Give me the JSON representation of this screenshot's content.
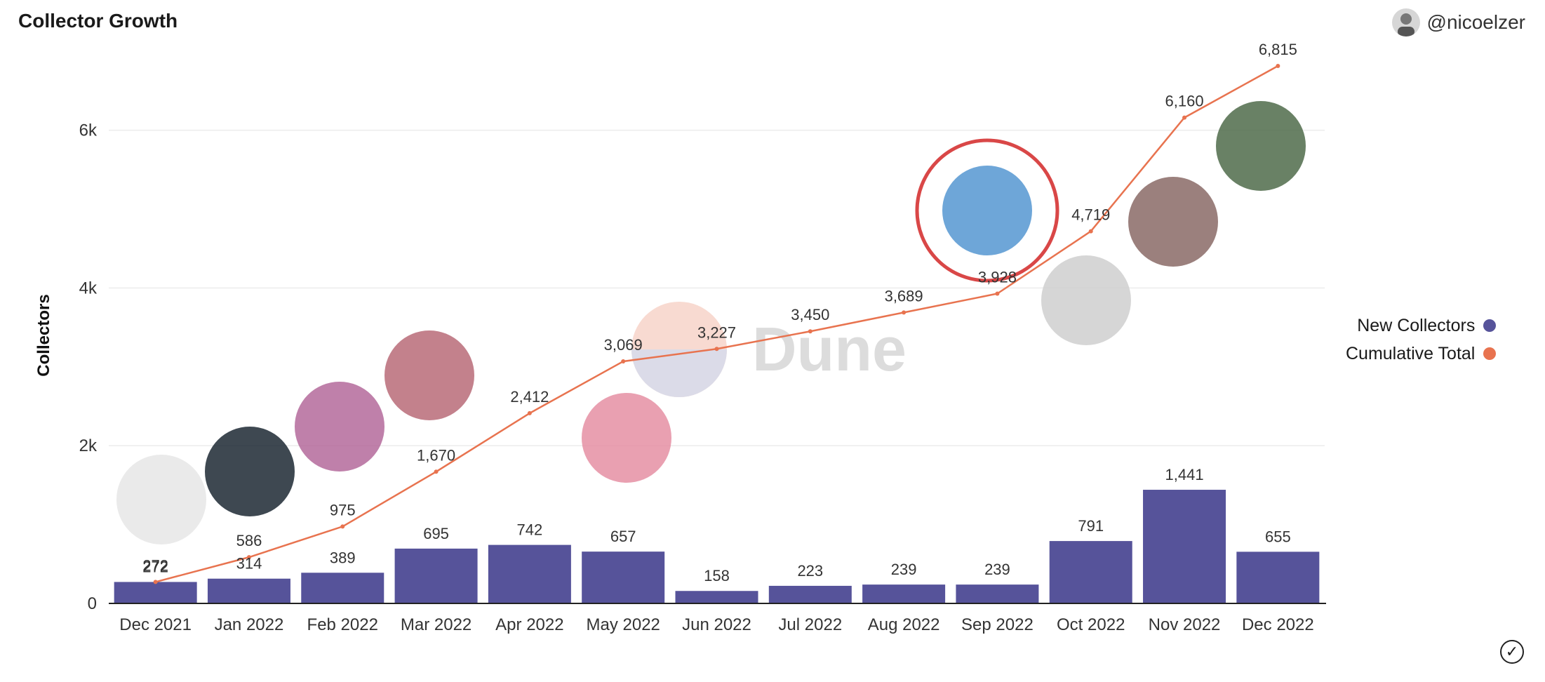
{
  "header": {
    "title": "Collector Growth",
    "username": "@nicoelzer"
  },
  "legend": [
    {
      "label": "New Collectors",
      "color": "#56539a"
    },
    {
      "label": "Cumulative Total",
      "color": "#e8734f"
    }
  ],
  "watermark": "Dune",
  "chart_data": {
    "type": "bar",
    "title": "Collector Growth",
    "xlabel": "",
    "ylabel": "Collectors",
    "categories": [
      "Dec 2021",
      "Jan 2022",
      "Feb 2022",
      "Mar 2022",
      "Apr 2022",
      "May 2022",
      "Jun 2022",
      "Jul 2022",
      "Aug 2022",
      "Sep 2022",
      "Oct 2022",
      "Nov 2022",
      "Dec 2022"
    ],
    "yticks": [
      "0",
      "2k",
      "4k",
      "6k"
    ],
    "ylim": [
      0,
      7000
    ],
    "grid": true,
    "legend_position": "right",
    "series": [
      {
        "name": "New Collectors",
        "type": "bar",
        "color": "#56539a",
        "values": [
          272,
          314,
          389,
          695,
          742,
          657,
          158,
          223,
          239,
          239,
          791,
          1441,
          655
        ],
        "labels": [
          "272",
          "314",
          "389",
          "695",
          "742",
          "657",
          "158",
          "223",
          "239",
          "239",
          "791",
          "1,441",
          "655"
        ]
      },
      {
        "name": "Cumulative Total",
        "type": "line",
        "color": "#e8734f",
        "values": [
          272,
          586,
          975,
          1670,
          2412,
          3069,
          3227,
          3450,
          3689,
          3928,
          4719,
          6160,
          6815
        ],
        "labels": [
          "272",
          "586",
          "975",
          "1,670",
          "2,412",
          "3,069",
          "3,227",
          "3,450",
          "3,689",
          "3,928",
          "4,719",
          "6,160",
          "6,815"
        ]
      }
    ]
  }
}
